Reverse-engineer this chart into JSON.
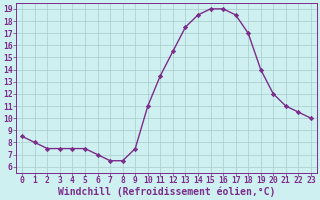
{
  "x": [
    0,
    1,
    2,
    3,
    4,
    5,
    6,
    7,
    8,
    9,
    10,
    11,
    12,
    13,
    14,
    15,
    16,
    17,
    18,
    19,
    20,
    21,
    22,
    23
  ],
  "y": [
    8.5,
    8.0,
    7.5,
    7.5,
    7.5,
    7.5,
    7.0,
    6.5,
    6.5,
    7.5,
    11.0,
    13.5,
    15.5,
    17.5,
    18.5,
    19.0,
    19.0,
    18.5,
    17.0,
    14.0,
    12.0,
    11.0,
    10.5,
    10.0
  ],
  "line_color": "#7b2d8b",
  "marker": "D",
  "marker_size": 2.2,
  "bg_color": "#cff0f0",
  "grid_color": "#aacccc",
  "xlabel": "Windchill (Refroidissement éolien,°C)",
  "ylim_min": 6,
  "ylim_max": 19,
  "xlim_min": 0,
  "xlim_max": 23,
  "yticks": [
    6,
    7,
    8,
    9,
    10,
    11,
    12,
    13,
    14,
    15,
    16,
    17,
    18,
    19
  ],
  "xticks": [
    0,
    1,
    2,
    3,
    4,
    5,
    6,
    7,
    8,
    9,
    10,
    11,
    12,
    13,
    14,
    15,
    16,
    17,
    18,
    19,
    20,
    21,
    22,
    23
  ],
  "tick_label_size": 5.8,
  "xlabel_size": 7.0,
  "label_color": "#7b2d8b",
  "spine_color": "#7b2d8b",
  "linewidth": 1.0
}
